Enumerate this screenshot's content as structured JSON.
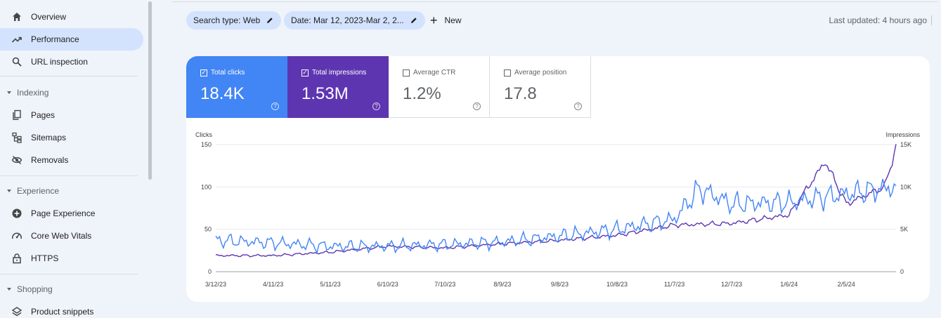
{
  "sidebar": {
    "items": [
      {
        "label": "Overview",
        "icon": "home-icon"
      },
      {
        "label": "Performance",
        "icon": "trending-icon",
        "active": true
      },
      {
        "label": "URL inspection",
        "icon": "search-icon"
      }
    ],
    "sections": [
      {
        "title": "Indexing",
        "items": [
          {
            "label": "Pages",
            "icon": "pages-icon"
          },
          {
            "label": "Sitemaps",
            "icon": "sitemap-icon"
          },
          {
            "label": "Removals",
            "icon": "removals-icon"
          }
        ]
      },
      {
        "title": "Experience",
        "items": [
          {
            "label": "Page Experience",
            "icon": "page-experience-icon"
          },
          {
            "label": "Core Web Vitals",
            "icon": "speedometer-icon"
          },
          {
            "label": "HTTPS",
            "icon": "lock-icon"
          }
        ]
      },
      {
        "title": "Shopping",
        "items": [
          {
            "label": "Product snippets",
            "icon": "layers-icon"
          }
        ]
      }
    ]
  },
  "toolbar": {
    "search_type_chip": "Search type: Web",
    "date_chip": "Date: Mar 12, 2023-Mar 2, 2...",
    "new_label": "New",
    "last_updated": "Last updated: 4 hours ago"
  },
  "metrics": [
    {
      "label": "Total clicks",
      "value": "18.4K",
      "selected": true,
      "color": "#4285f4"
    },
    {
      "label": "Total impressions",
      "value": "1.53M",
      "selected": true,
      "color": "#5e35b1"
    },
    {
      "label": "Average CTR",
      "value": "1.2%",
      "selected": false
    },
    {
      "label": "Average position",
      "value": "17.8",
      "selected": false
    }
  ],
  "colors": {
    "clicks": "#4285f4",
    "impressions": "#5e35b1",
    "chip_bg": "#d3e3fd"
  },
  "chart_data": {
    "type": "line",
    "left_axis_label": "Clicks",
    "right_axis_label": "Impressions",
    "y_left": {
      "min": 0,
      "max": 150,
      "ticks": [
        "0",
        "50",
        "100",
        "150"
      ]
    },
    "y_right": {
      "min": 0,
      "max": 15000,
      "ticks": [
        "0",
        "5K",
        "10K",
        "15K"
      ]
    },
    "x_tick_labels": [
      "3/12/23",
      "4/11/23",
      "5/11/23",
      "6/10/23",
      "7/10/23",
      "8/9/23",
      "9/8/23",
      "10/8/23",
      "11/7/23",
      "12/7/23",
      "1/6/24",
      "2/5/24"
    ],
    "x_range": [
      "2023-03-12",
      "2024-03-02"
    ],
    "grid": true,
    "series": [
      {
        "name": "Clicks",
        "axis": "left",
        "color": "#4285f4",
        "approx_points": [
          [
            "2023-03-12",
            37
          ],
          [
            "2023-04-11",
            34
          ],
          [
            "2023-05-11",
            30
          ],
          [
            "2023-06-10",
            30
          ],
          [
            "2023-07-10",
            32
          ],
          [
            "2023-08-09",
            35
          ],
          [
            "2023-09-08",
            42
          ],
          [
            "2023-10-08",
            50
          ],
          [
            "2023-11-07",
            62
          ],
          [
            "2023-11-20",
            98
          ],
          [
            "2023-12-07",
            80
          ],
          [
            "2024-01-06",
            82
          ],
          [
            "2024-02-05",
            92
          ],
          [
            "2024-03-02",
            100
          ]
        ]
      },
      {
        "name": "Impressions",
        "axis": "right",
        "color": "#5e35b1",
        "approx_points": [
          [
            "2023-03-12",
            1900
          ],
          [
            "2023-04-11",
            1900
          ],
          [
            "2023-05-11",
            2300
          ],
          [
            "2023-06-10",
            3000
          ],
          [
            "2023-07-10",
            2800
          ],
          [
            "2023-08-09",
            3300
          ],
          [
            "2023-09-08",
            3700
          ],
          [
            "2023-10-08",
            4300
          ],
          [
            "2023-11-07",
            5500
          ],
          [
            "2023-12-07",
            5700
          ],
          [
            "2024-01-06",
            6700
          ],
          [
            "2024-01-25",
            13000
          ],
          [
            "2024-02-05",
            8000
          ],
          [
            "2024-02-25",
            10000
          ],
          [
            "2024-03-02",
            14700
          ]
        ]
      }
    ]
  }
}
